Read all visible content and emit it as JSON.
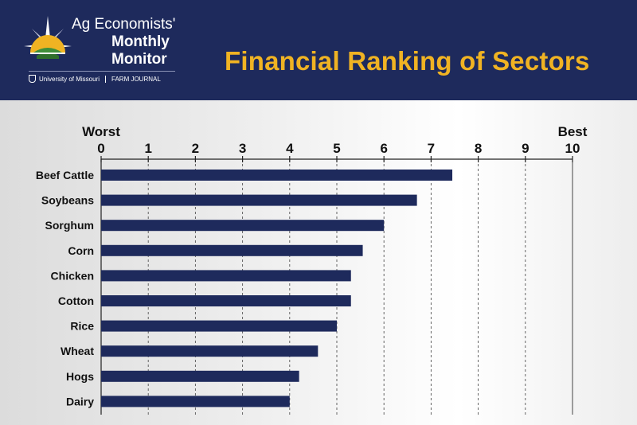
{
  "header": {
    "title": "Financial Ranking of Sectors",
    "logo": {
      "line1": "Ag Economists'",
      "line2": "Monthly",
      "line3": "Monitor",
      "partner1": "University of Missouri",
      "partner2": "FARM JOURNAL"
    }
  },
  "colors": {
    "header_bg": "#1e2a5c",
    "title": "#f0b323",
    "bar": "#1e2a5c"
  },
  "chart_data": {
    "type": "bar",
    "orientation": "horizontal",
    "title": "Financial Ranking of Sectors",
    "axis_end_labels": {
      "min": "Worst",
      "max": "Best"
    },
    "xlim": [
      0,
      10
    ],
    "ticks": [
      0,
      1,
      2,
      3,
      4,
      5,
      6,
      7,
      8,
      9,
      10
    ],
    "grid": true,
    "categories": [
      "Beef Cattle",
      "Soybeans",
      "Sorghum",
      "Corn",
      "Chicken",
      "Cotton",
      "Rice",
      "Wheat",
      "Hogs",
      "Dairy"
    ],
    "values": [
      7.45,
      6.7,
      6.0,
      5.55,
      5.3,
      5.3,
      5.0,
      4.6,
      4.2,
      4.0
    ]
  }
}
